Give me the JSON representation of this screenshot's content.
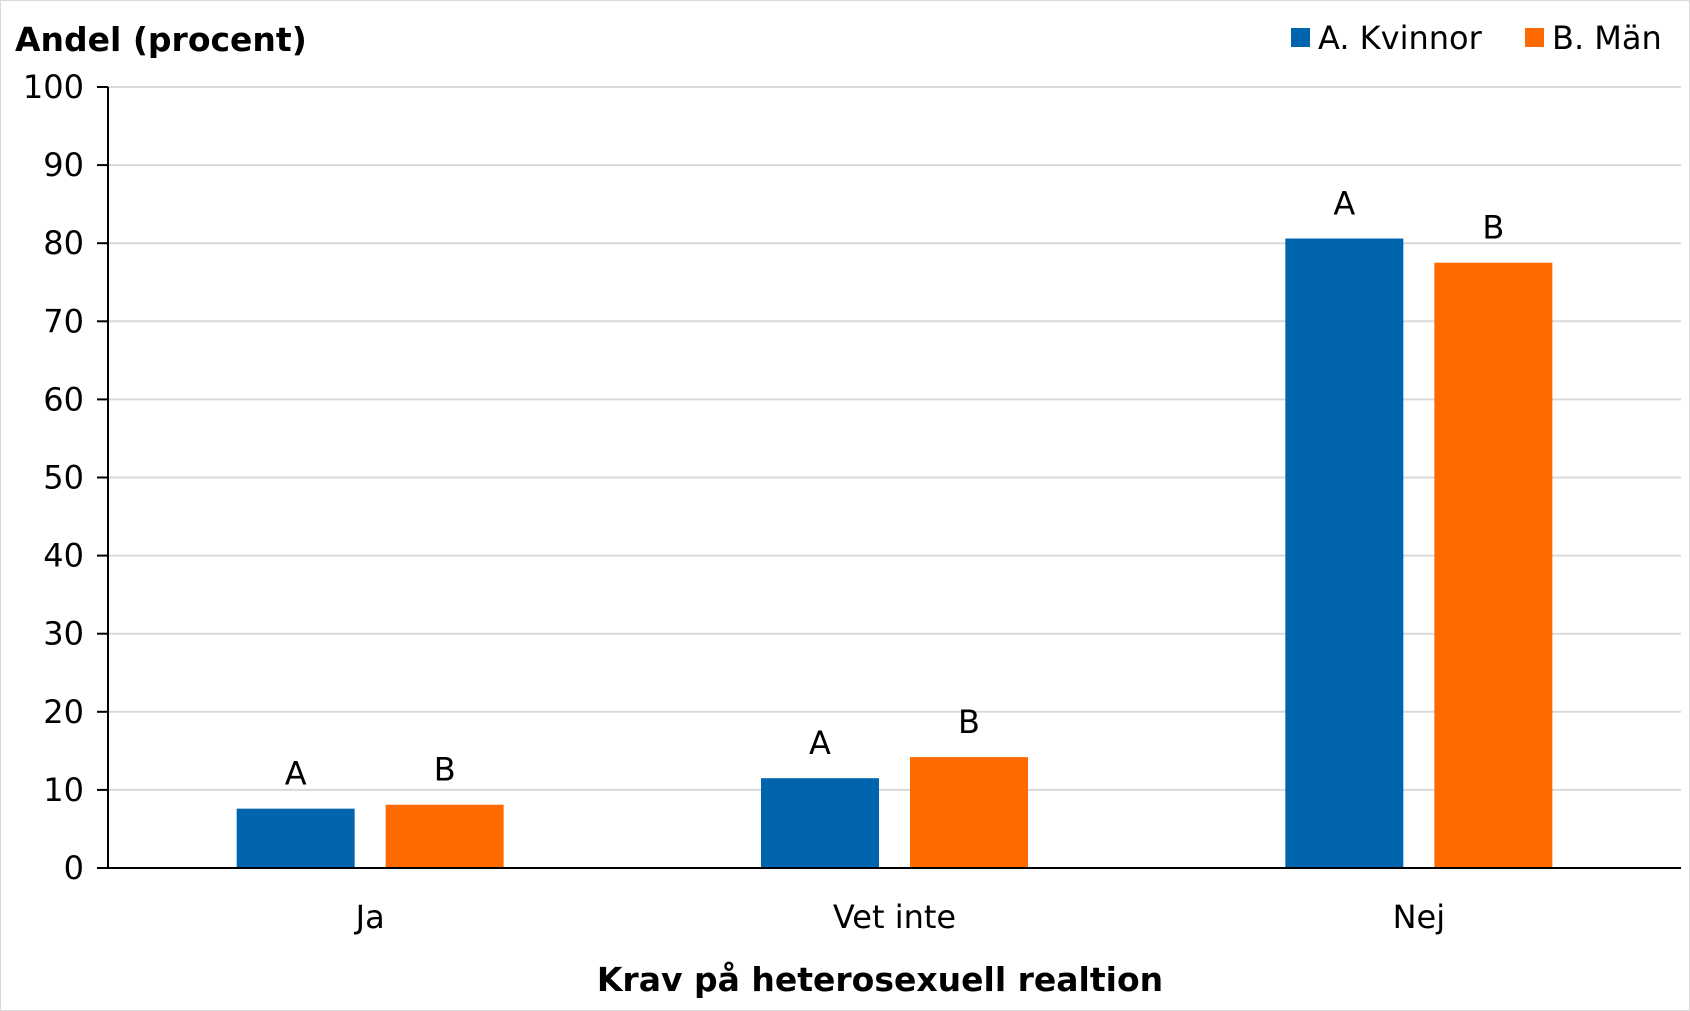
{
  "chart_data": {
    "type": "bar",
    "title": "",
    "ylabel": "Andel (procent)",
    "xlabel": "Krav på heterosexuell realtion",
    "categories": [
      "Ja",
      "Vet inte",
      "Nej"
    ],
    "ylim": [
      0,
      100
    ],
    "yticks": [
      "0",
      "10",
      "20",
      "30",
      "40",
      "50",
      "60",
      "70",
      "80",
      "90",
      "100"
    ],
    "grid": true,
    "legend_position": "top-right",
    "series": [
      {
        "name": "A. Kvinnor",
        "bar_label": "A",
        "color": "#0065AE",
        "values": [
          7.6,
          11.5,
          80.6
        ]
      },
      {
        "name": "B. Män",
        "bar_label": "B",
        "color": "#FF6A00",
        "values": [
          8.1,
          14.2,
          77.5
        ]
      }
    ]
  }
}
